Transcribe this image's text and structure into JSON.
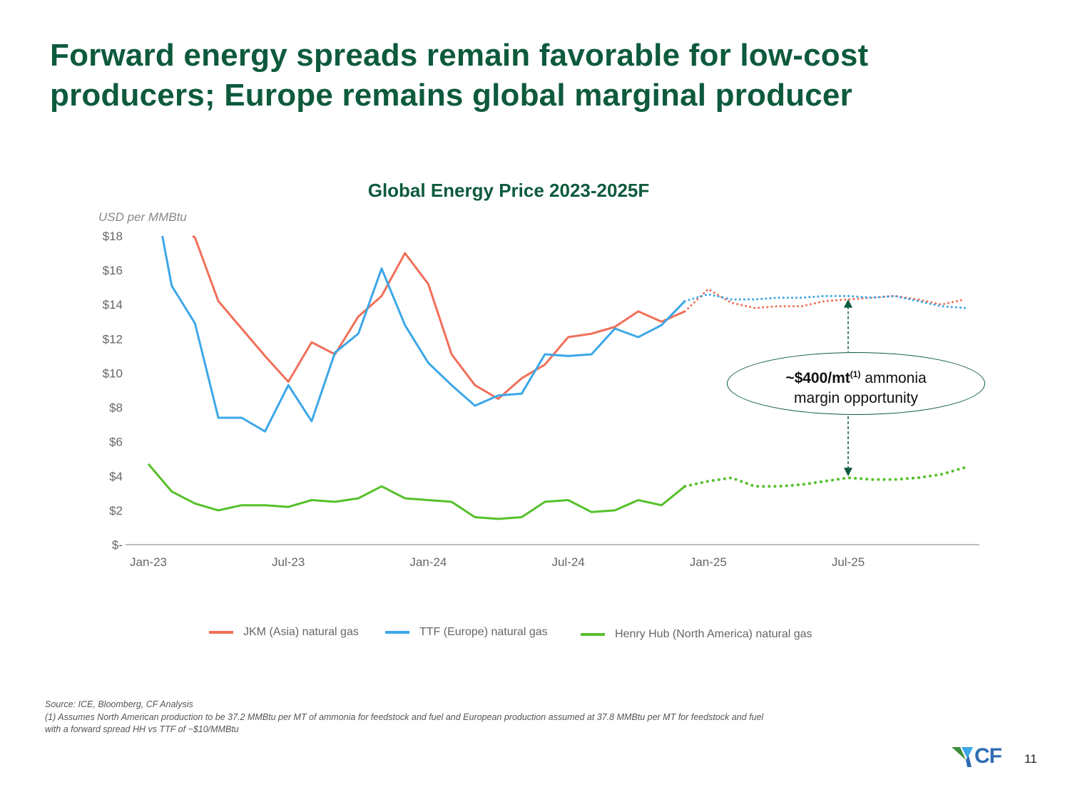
{
  "slide": {
    "title_line1": "Forward energy spreads remain favorable for low-cost",
    "title_line2": "producers; Europe remains global marginal producer",
    "page_number": "11",
    "logo_text": "CF"
  },
  "callout": {
    "bold": "~$400/mt",
    "sup": "(1)",
    "rest1": " ammonia",
    "line2": "margin opportunity"
  },
  "footnotes": {
    "source": "Source: ICE, Bloomberg, CF Analysis",
    "note1": "(1) Assumes North American production to be 37.2 MMBtu per MT of ammonia for feedstock and fuel and European production assumed at 37.8 MMBtu per MT for feedstock and fuel",
    "note2": "with a forward spread HH vs TTF of ~$10/MMBtu"
  },
  "chart_data": {
    "type": "line",
    "title": "Global Energy Price 2023-2025F",
    "ylabel": "USD per MMBtu",
    "xlabel": "",
    "ylim": [
      0,
      18
    ],
    "yticks": [
      0,
      2,
      4,
      6,
      8,
      10,
      12,
      14,
      16,
      18
    ],
    "ytick_labels": [
      "$-",
      "$2",
      "$4",
      "$6",
      "$8",
      "$10",
      "$12",
      "$14",
      "$16",
      "$18"
    ],
    "xtick_labels": [
      "Jan-23",
      "Jul-23",
      "Jan-24",
      "Jul-24",
      "Jan-25",
      "Jul-25"
    ],
    "xtick_index": [
      0,
      6,
      12,
      18,
      24,
      30
    ],
    "x_count": 36,
    "forecast_from_index": 23,
    "legend_position": "bottom",
    "series": [
      {
        "name": "JKM (Asia) natural gas",
        "color": "#f0705a",
        "actual": [
          [
            1.9,
            18.0
          ],
          [
            2,
            17.9
          ],
          [
            3,
            14.2
          ],
          [
            4,
            12.6
          ],
          [
            5,
            11.0
          ],
          [
            6,
            9.5
          ],
          [
            7,
            11.8
          ],
          [
            8,
            11.1
          ],
          [
            9,
            13.3
          ],
          [
            10,
            14.5
          ],
          [
            11,
            17.0
          ],
          [
            12,
            15.2
          ],
          [
            13,
            11.1
          ],
          [
            14,
            9.3
          ],
          [
            15,
            8.5
          ],
          [
            16,
            9.7
          ],
          [
            17,
            10.5
          ],
          [
            18,
            12.1
          ],
          [
            19,
            12.3
          ],
          [
            20,
            12.7
          ],
          [
            21,
            13.6
          ],
          [
            22,
            13.0
          ],
          [
            23,
            13.6
          ]
        ],
        "forecast": [
          [
            23,
            13.6
          ],
          [
            24,
            14.9
          ],
          [
            25,
            14.1
          ],
          [
            26,
            13.8
          ],
          [
            27,
            13.9
          ],
          [
            28,
            13.9
          ],
          [
            29,
            14.2
          ],
          [
            30,
            14.3
          ],
          [
            31,
            14.4
          ],
          [
            32,
            14.5
          ],
          [
            33,
            14.3
          ],
          [
            34,
            14.0
          ],
          [
            35,
            14.3
          ]
        ]
      },
      {
        "name": "TTF (Europe) natural gas",
        "color": "#3ca7e8",
        "actual": [
          [
            0.6,
            18.0
          ],
          [
            1,
            15.1
          ],
          [
            2,
            12.9
          ],
          [
            3,
            7.4
          ],
          [
            4,
            7.4
          ],
          [
            5,
            6.6
          ],
          [
            6,
            9.3
          ],
          [
            7,
            7.2
          ],
          [
            8,
            11.2
          ],
          [
            9,
            12.3
          ],
          [
            10,
            16.1
          ],
          [
            11,
            12.8
          ],
          [
            12,
            10.6
          ],
          [
            13,
            9.3
          ],
          [
            14,
            8.1
          ],
          [
            15,
            8.7
          ],
          [
            16,
            8.8
          ],
          [
            17,
            11.1
          ],
          [
            18,
            11.0
          ],
          [
            19,
            11.1
          ],
          [
            20,
            12.6
          ],
          [
            21,
            12.1
          ],
          [
            22,
            12.8
          ],
          [
            23,
            14.2
          ]
        ],
        "forecast": [
          [
            23,
            14.2
          ],
          [
            24,
            14.6
          ],
          [
            25,
            14.3
          ],
          [
            26,
            14.3
          ],
          [
            27,
            14.4
          ],
          [
            28,
            14.4
          ],
          [
            29,
            14.5
          ],
          [
            30,
            14.5
          ],
          [
            31,
            14.4
          ],
          [
            32,
            14.5
          ],
          [
            33,
            14.2
          ],
          [
            34,
            13.9
          ],
          [
            35,
            13.8
          ]
        ]
      },
      {
        "name": "Henry Hub (North America) natural gas",
        "color": "#56c02b",
        "actual": [
          [
            0,
            4.7
          ],
          [
            1,
            3.1
          ],
          [
            2,
            2.4
          ],
          [
            3,
            2.0
          ],
          [
            4,
            2.3
          ],
          [
            5,
            2.3
          ],
          [
            6,
            2.2
          ],
          [
            7,
            2.6
          ],
          [
            8,
            2.5
          ],
          [
            9,
            2.7
          ],
          [
            10,
            3.4
          ],
          [
            11,
            2.7
          ],
          [
            12,
            2.6
          ],
          [
            13,
            2.5
          ],
          [
            14,
            1.6
          ],
          [
            15,
            1.5
          ],
          [
            16,
            1.6
          ],
          [
            17,
            2.5
          ],
          [
            18,
            2.6
          ],
          [
            19,
            1.9
          ],
          [
            20,
            2.0
          ],
          [
            21,
            2.6
          ],
          [
            22,
            2.3
          ],
          [
            23,
            3.4
          ]
        ],
        "forecast": [
          [
            23,
            3.4
          ],
          [
            24,
            3.7
          ],
          [
            25,
            3.9
          ],
          [
            26,
            3.4
          ],
          [
            27,
            3.4
          ],
          [
            28,
            3.5
          ],
          [
            29,
            3.7
          ],
          [
            30,
            3.9
          ],
          [
            31,
            3.8
          ],
          [
            32,
            3.8
          ],
          [
            33,
            3.9
          ],
          [
            34,
            4.1
          ],
          [
            35,
            4.5
          ]
        ]
      }
    ]
  }
}
